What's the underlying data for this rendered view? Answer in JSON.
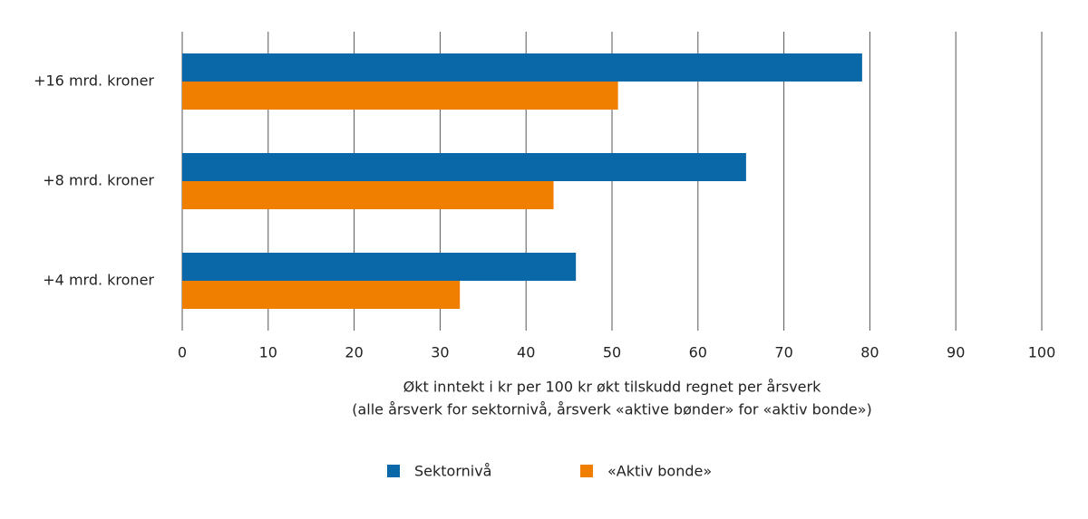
{
  "chart_data": {
    "type": "hbar",
    "categories": [
      "+16 mrd. kroner",
      "+8 mrd. kroner",
      "+4 mrd. kroner"
    ],
    "series": [
      {
        "name": "Sektornivå",
        "color": "#0a67a8",
        "values": [
          79.1,
          65.6,
          45.8
        ]
      },
      {
        "name": "«Aktiv bonde»",
        "color": "#f07f00",
        "values": [
          50.7,
          43.2,
          32.3
        ]
      }
    ],
    "xlim": [
      0,
      100
    ],
    "xticks": [
      0,
      10,
      20,
      30,
      40,
      50,
      60,
      70,
      80,
      90,
      100
    ],
    "grid": true,
    "xlabel": [
      "Økt inntekt i kr per 100 kr økt tilskudd regnet per årsverk",
      "(alle årsverk for sektornivå, årsverk «aktive bønder» for «aktiv bonde»)"
    ],
    "legend": "bottom"
  }
}
